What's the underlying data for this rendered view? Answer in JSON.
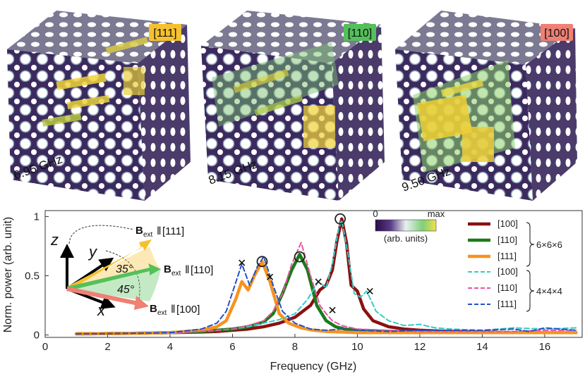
{
  "panels": [
    {
      "direction": "[111]",
      "badge_color": "#f5c12e",
      "freq_label": "6.95 GHz"
    },
    {
      "direction": "[110]",
      "badge_color": "#54c05a",
      "freq_label": "8.15 GHz"
    },
    {
      "direction": "[100]",
      "badge_color": "#f07f74",
      "freq_label": "9.50 GHz"
    }
  ],
  "colorbar": {
    "min_label": "0",
    "max_label": "max",
    "units_label": "(arb. units)",
    "colors": [
      "#2b0a4a",
      "#5a3a86",
      "#e8f0f0",
      "#7fcf78",
      "#f3e04a"
    ]
  },
  "inset": {
    "axis_x": "x",
    "axis_y": "y",
    "axis_z": "z",
    "angle_35": "35°",
    "angle_45": "45°",
    "b_main": "B",
    "b_sub": "ext",
    "b111_dir": "[111]",
    "b110_dir": "[110]",
    "b100_dir": "[100]",
    "b111_color": "#f5c12e",
    "b110_color": "#54c05a",
    "b100_color": "#f07f74"
  },
  "chart_data": {
    "type": "line",
    "xlabel": "Frequency (GHz)",
    "ylabel": "Norm. power (arb. unit)",
    "xlim": [
      0,
      17.2
    ],
    "ylim": [
      -0.02,
      1.05
    ],
    "xticks": [
      0,
      2,
      4,
      6,
      8,
      10,
      12,
      14,
      16
    ],
    "yticks": [
      0,
      0.5,
      1
    ],
    "ytick_labels": [
      "0",
      "0.5",
      "1"
    ],
    "legend_groups": [
      {
        "label": "6×6×6",
        "style": "solid"
      },
      {
        "label": "4×4×4",
        "style": "dashed"
      }
    ],
    "series": [
      {
        "name": "[100]",
        "group": "6×6×6",
        "color": "#8b1010",
        "style": "solid",
        "x": [
          1,
          2,
          3,
          4,
          5,
          5.5,
          6,
          6.5,
          7,
          7.5,
          8,
          8.5,
          8.8,
          9,
          9.2,
          9.35,
          9.5,
          9.65,
          9.8,
          10,
          10.2,
          10.5,
          11,
          11.5,
          12,
          13,
          14,
          15,
          16,
          17
        ],
        "y": [
          0.01,
          0.012,
          0.015,
          0.02,
          0.025,
          0.03,
          0.04,
          0.05,
          0.07,
          0.1,
          0.15,
          0.25,
          0.38,
          0.42,
          0.55,
          0.8,
          0.98,
          0.78,
          0.42,
          0.37,
          0.22,
          0.12,
          0.07,
          0.05,
          0.04,
          0.03,
          0.025,
          0.02,
          0.02,
          0.02
        ]
      },
      {
        "name": "[110]",
        "group": "6×6×6",
        "color": "#1a7a1a",
        "style": "solid",
        "x": [
          1,
          2,
          3,
          4,
          5,
          5.5,
          6,
          6.5,
          7,
          7.3,
          7.6,
          7.9,
          8.15,
          8.4,
          8.7,
          9,
          9.3,
          9.6,
          10,
          11,
          12,
          13,
          14,
          15,
          16,
          17
        ],
        "y": [
          0.01,
          0.012,
          0.015,
          0.02,
          0.03,
          0.04,
          0.05,
          0.07,
          0.11,
          0.18,
          0.35,
          0.55,
          0.68,
          0.55,
          0.25,
          0.12,
          0.07,
          0.05,
          0.04,
          0.03,
          0.02,
          0.02,
          0.02,
          0.02,
          0.02,
          0.02
        ]
      },
      {
        "name": "[111]",
        "group": "6×6×6",
        "color": "#f7931e",
        "style": "solid",
        "x": [
          1,
          2,
          3,
          4,
          5,
          5.5,
          5.8,
          6.1,
          6.3,
          6.5,
          6.7,
          6.95,
          7.2,
          7.5,
          7.8,
          8.2,
          8.6,
          9,
          10,
          11,
          12,
          13,
          14,
          15,
          16,
          17
        ],
        "y": [
          0.01,
          0.012,
          0.015,
          0.02,
          0.04,
          0.07,
          0.12,
          0.3,
          0.45,
          0.38,
          0.5,
          0.62,
          0.45,
          0.18,
          0.1,
          0.06,
          0.04,
          0.03,
          0.02,
          0.02,
          0.02,
          0.02,
          0.02,
          0.02,
          0.02,
          0.02
        ]
      },
      {
        "name": "[100]",
        "group": "4×4×4",
        "color": "#37c9c9",
        "style": "dashed",
        "x": [
          1,
          2,
          3,
          4,
          5,
          6,
          6.5,
          7,
          7.5,
          8,
          8.4,
          8.75,
          9,
          9.2,
          9.4,
          9.5,
          9.7,
          9.9,
          10.1,
          10.3,
          10.6,
          11,
          11.5,
          12,
          12.5,
          13,
          14,
          15,
          16,
          17
        ],
        "y": [
          0.01,
          0.012,
          0.015,
          0.02,
          0.03,
          0.05,
          0.07,
          0.1,
          0.13,
          0.18,
          0.3,
          0.45,
          0.4,
          0.6,
          0.9,
          0.97,
          0.68,
          0.35,
          0.32,
          0.37,
          0.2,
          0.12,
          0.08,
          0.09,
          0.06,
          0.05,
          0.04,
          0.06,
          0.05,
          0.06
        ]
      },
      {
        "name": "[110]",
        "group": "4×4×4",
        "color": "#e7549e",
        "style": "dashed",
        "x": [
          1,
          2,
          3,
          4,
          5,
          5.5,
          6,
          6.5,
          7,
          7.3,
          7.6,
          7.9,
          8.2,
          8.5,
          8.8,
          9,
          9.2,
          9.5,
          10,
          11,
          12,
          13,
          14,
          15,
          16,
          17
        ],
        "y": [
          0.01,
          0.012,
          0.015,
          0.02,
          0.03,
          0.04,
          0.05,
          0.08,
          0.12,
          0.2,
          0.35,
          0.6,
          0.78,
          0.5,
          0.25,
          0.18,
          0.12,
          0.08,
          0.05,
          0.04,
          0.03,
          0.03,
          0.03,
          0.03,
          0.04,
          0.04
        ]
      },
      {
        "name": "[111]",
        "group": "4×4×4",
        "color": "#2450c8",
        "style": "dashed",
        "x": [
          1,
          2,
          3,
          4,
          5,
          5.5,
          5.8,
          6.05,
          6.3,
          6.55,
          6.8,
          7,
          7.3,
          7.6,
          8,
          8.5,
          9,
          9.5,
          10,
          11,
          12,
          13,
          14,
          15,
          15.5,
          16,
          16.5,
          17
        ],
        "y": [
          0.01,
          0.012,
          0.015,
          0.02,
          0.05,
          0.1,
          0.2,
          0.4,
          0.6,
          0.42,
          0.58,
          0.66,
          0.42,
          0.2,
          0.1,
          0.05,
          0.04,
          0.05,
          0.04,
          0.03,
          0.04,
          0.04,
          0.04,
          0.05,
          0.03,
          0.06,
          0.05,
          0.04
        ]
      }
    ],
    "circle_markers": [
      [
        6.95,
        0.62
      ],
      [
        8.15,
        0.66
      ],
      [
        9.45,
        0.98
      ]
    ],
    "cross_markers": [
      [
        6.3,
        0.61
      ],
      [
        7.2,
        0.49
      ],
      [
        8.75,
        0.45
      ],
      [
        9.2,
        0.21
      ],
      [
        10.4,
        0.37
      ]
    ]
  }
}
